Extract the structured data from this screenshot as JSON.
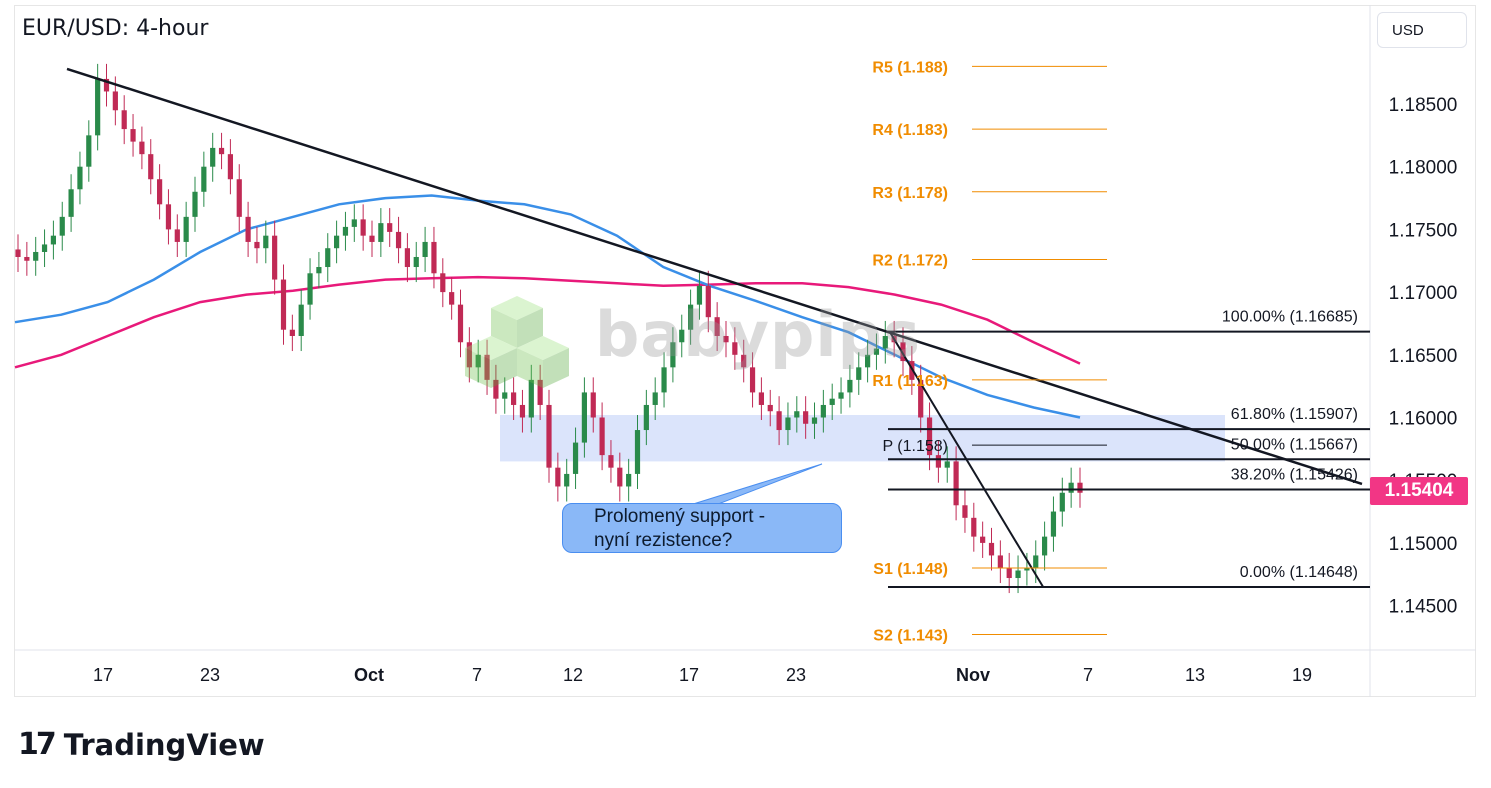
{
  "header": {
    "title": "EUR/USD: 4-hour",
    "currency": "USD"
  },
  "price_tag": "1.15404",
  "callout": {
    "line1": "Prolomený support -",
    "line2": "nyní rezistence?"
  },
  "watermark": "babypips",
  "footer": {
    "logo_mark": "17",
    "logo_text": "TradingView"
  },
  "colors": {
    "ma_fast": "#3a8fe8",
    "ma_slow": "#e8197a",
    "bull": "#2a8a4a",
    "bear": "#c02a55",
    "pivot": "#f08c00",
    "zone": "#dbe4fb",
    "price_tag": "#f23685"
  },
  "chart_data": {
    "type": "candlestick",
    "title": "EUR/USD: 4-hour",
    "y_axis": {
      "ticks": [
        "1.18500",
        "1.18000",
        "1.17500",
        "1.17000",
        "1.16500",
        "1.16000",
        "1.15500",
        "1.15000",
        "1.14500"
      ],
      "range": [
        1.1395,
        1.1905
      ]
    },
    "x_axis": {
      "ticks": [
        "17",
        "23",
        "Oct",
        "7",
        "12",
        "17",
        "23",
        "Nov",
        "7",
        "13",
        "19"
      ]
    },
    "pivot_levels": [
      {
        "label": "R5 (1.188)",
        "value": 1.188
      },
      {
        "label": "R4 (1.183)",
        "value": 1.183
      },
      {
        "label": "R3 (1.178)",
        "value": 1.178
      },
      {
        "label": "R2 (1.172)",
        "value": 1.1726
      },
      {
        "label": "R1 (1.163)",
        "value": 1.163
      },
      {
        "label": "P (1.158)",
        "value": 1.1578
      },
      {
        "label": "S1 (1.148)",
        "value": 1.148
      },
      {
        "label": "S2 (1.143)",
        "value": 1.1427
      }
    ],
    "fib_levels": [
      {
        "label": "100.00% (1.16685)",
        "value": 1.16685
      },
      {
        "label": "61.80% (1.15907)",
        "value": 1.15907
      },
      {
        "label": "50.00% (1.15667)",
        "value": 1.15667
      },
      {
        "label": "38.20% (1.15426)",
        "value": 1.15426
      },
      {
        "label": "0.00% (1.14648)",
        "value": 1.14648
      }
    ],
    "current_price": 1.15404,
    "resistance_zone": {
      "low": 1.1565,
      "high": 1.1602
    },
    "trendline": {
      "start": 1.1878,
      "end": 1.1547
    },
    "swing_line": {
      "start": 1.1668,
      "end": 1.1465
    },
    "ma_fast": [
      1.1676,
      1.1682,
      1.1692,
      1.171,
      1.1732,
      1.175,
      1.176,
      1.177,
      1.1775,
      1.1777,
      1.1773,
      1.177,
      1.1762,
      1.1745,
      1.172,
      1.1705,
      1.1693,
      1.168,
      1.1668,
      1.165,
      1.1632,
      1.1618,
      1.1608,
      1.16
    ],
    "ma_slow": [
      1.164,
      1.165,
      1.1665,
      1.168,
      1.1692,
      1.1698,
      1.1701,
      1.1706,
      1.171,
      1.1711,
      1.1712,
      1.1711,
      1.1709,
      1.1707,
      1.1705,
      1.1706,
      1.1707,
      1.1707,
      1.1704,
      1.1698,
      1.169,
      1.1678,
      1.166,
      1.1643
    ],
    "candles_close": [
      1.1728,
      1.1725,
      1.1732,
      1.1738,
      1.1745,
      1.176,
      1.1782,
      1.18,
      1.1825,
      1.187,
      1.186,
      1.1845,
      1.183,
      1.182,
      1.181,
      1.179,
      1.177,
      1.175,
      1.174,
      1.176,
      1.178,
      1.18,
      1.1815,
      1.181,
      1.179,
      1.176,
      1.174,
      1.1735,
      1.1745,
      1.171,
      1.167,
      1.1665,
      1.169,
      1.1715,
      1.172,
      1.1735,
      1.1745,
      1.1752,
      1.1758,
      1.1745,
      1.174,
      1.1755,
      1.1748,
      1.1735,
      1.172,
      1.1728,
      1.174,
      1.1715,
      1.17,
      1.169,
      1.166,
      1.164,
      1.165,
      1.163,
      1.1615,
      1.162,
      1.161,
      1.16,
      1.163,
      1.161,
      1.156,
      1.1545,
      1.1555,
      1.158,
      1.162,
      1.16,
      1.157,
      1.156,
      1.1545,
      1.1555,
      1.159,
      1.161,
      1.162,
      1.164,
      1.166,
      1.167,
      1.169,
      1.1705,
      1.168,
      1.1665,
      1.166,
      1.165,
      1.164,
      1.162,
      1.161,
      1.1605,
      1.159,
      1.16,
      1.1605,
      1.1595,
      1.16,
      1.161,
      1.1615,
      1.162,
      1.163,
      1.164,
      1.165,
      1.1655,
      1.1665,
      1.166,
      1.1645,
      1.163,
      1.16,
      1.157,
      1.156,
      1.1565,
      1.153,
      1.152,
      1.1505,
      1.15,
      1.149,
      1.148,
      1.1472,
      1.1478,
      1.148,
      1.149,
      1.1505,
      1.1525,
      1.154,
      1.1548,
      1.154
    ]
  }
}
